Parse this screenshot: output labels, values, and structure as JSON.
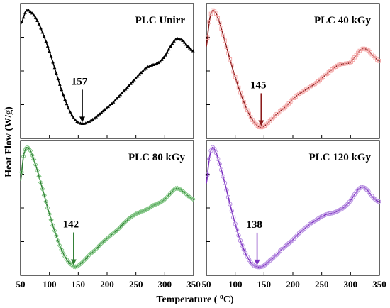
{
  "figure": {
    "xlabel": "Temperature ( ",
    "xlabel_sup": "o",
    "xlabel_unit": "C)",
    "ylabel": "Heat Flow (W/g)",
    "x_ticks": [
      "50",
      "100",
      "150",
      "200",
      "250",
      "300",
      "350"
    ]
  },
  "chart_data": [
    {
      "type": "line",
      "title": "PLC Unirr",
      "color": "#000000",
      "marker": "triangle-filled",
      "annotation": {
        "label": "157",
        "x": 157
      },
      "xlim": [
        50,
        350
      ],
      "x": [
        50,
        60,
        70,
        80,
        90,
        100,
        110,
        120,
        130,
        140,
        150,
        160,
        170,
        180,
        190,
        200,
        210,
        220,
        230,
        240,
        250,
        260,
        270,
        280,
        290,
        300,
        310,
        320,
        330,
        340,
        350
      ],
      "y": [
        0.88,
        0.99,
        0.97,
        0.9,
        0.79,
        0.66,
        0.51,
        0.36,
        0.23,
        0.13,
        0.08,
        0.07,
        0.09,
        0.12,
        0.16,
        0.2,
        0.24,
        0.29,
        0.34,
        0.39,
        0.44,
        0.49,
        0.53,
        0.55,
        0.57,
        0.62,
        0.7,
        0.76,
        0.75,
        0.7,
        0.66
      ]
    },
    {
      "type": "line",
      "title": "PLC 40 kGy",
      "color": "#8b1a1a",
      "marker_color": "#f4a6a6",
      "marker": "square-open",
      "annotation": {
        "label": "145",
        "x": 145
      },
      "xlim": [
        50,
        350
      ],
      "x": [
        50,
        55,
        60,
        65,
        70,
        80,
        90,
        100,
        110,
        120,
        130,
        140,
        145,
        150,
        160,
        170,
        180,
        190,
        200,
        210,
        220,
        230,
        240,
        250,
        260,
        270,
        280,
        290,
        300,
        310,
        320,
        330,
        340,
        350
      ],
      "y": [
        0.7,
        0.9,
        0.99,
        0.98,
        0.93,
        0.78,
        0.61,
        0.45,
        0.31,
        0.19,
        0.1,
        0.05,
        0.04,
        0.05,
        0.09,
        0.14,
        0.18,
        0.22,
        0.27,
        0.31,
        0.34,
        0.37,
        0.4,
        0.44,
        0.48,
        0.52,
        0.55,
        0.56,
        0.57,
        0.63,
        0.68,
        0.67,
        0.62,
        0.58
      ]
    },
    {
      "type": "line",
      "title": "PLC 80 kGy",
      "color": "#2e7d32",
      "marker_color": "#7cc47f",
      "marker": "diamond-open",
      "annotation": {
        "label": "142",
        "x": 142
      },
      "xlim": [
        50,
        350
      ],
      "x": [
        50,
        55,
        60,
        65,
        70,
        80,
        90,
        100,
        110,
        120,
        130,
        140,
        145,
        150,
        160,
        170,
        180,
        190,
        200,
        210,
        220,
        230,
        240,
        250,
        260,
        270,
        280,
        290,
        300,
        310,
        320,
        330,
        340,
        350
      ],
      "y": [
        0.72,
        0.92,
        0.99,
        0.98,
        0.93,
        0.79,
        0.62,
        0.45,
        0.3,
        0.17,
        0.08,
        0.03,
        0.02,
        0.03,
        0.07,
        0.12,
        0.16,
        0.21,
        0.25,
        0.29,
        0.33,
        0.38,
        0.42,
        0.45,
        0.47,
        0.49,
        0.52,
        0.54,
        0.57,
        0.62,
        0.66,
        0.64,
        0.6,
        0.57
      ]
    },
    {
      "type": "line",
      "title": "PLC 120 kGy",
      "color": "#7b2fbf",
      "marker_color": "#b58be0",
      "marker": "circle-open",
      "annotation": {
        "label": "138",
        "x": 138
      },
      "xlim": [
        50,
        350
      ],
      "x": [
        50,
        55,
        60,
        65,
        70,
        80,
        90,
        100,
        110,
        120,
        130,
        138,
        145,
        150,
        160,
        170,
        180,
        190,
        200,
        210,
        220,
        230,
        240,
        250,
        260,
        270,
        280,
        290,
        300,
        310,
        320,
        330,
        340,
        350
      ],
      "y": [
        0.7,
        0.9,
        0.99,
        0.97,
        0.9,
        0.74,
        0.55,
        0.37,
        0.22,
        0.11,
        0.04,
        0.02,
        0.02,
        0.03,
        0.07,
        0.11,
        0.16,
        0.2,
        0.24,
        0.29,
        0.33,
        0.37,
        0.4,
        0.43,
        0.45,
        0.46,
        0.48,
        0.51,
        0.56,
        0.63,
        0.67,
        0.64,
        0.58,
        0.55
      ]
    }
  ]
}
